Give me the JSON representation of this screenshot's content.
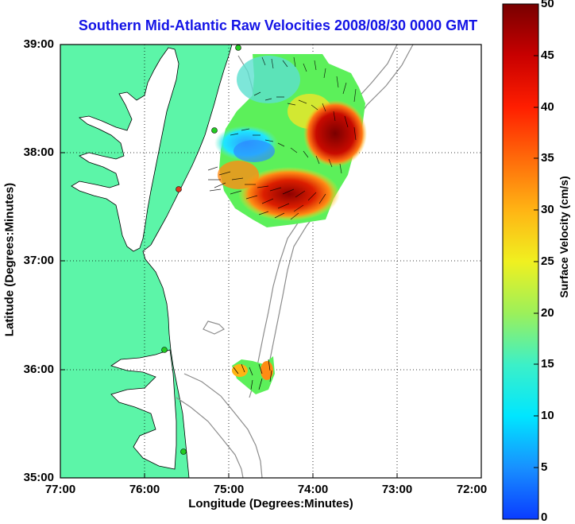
{
  "title": "Southern Mid-Atlantic Raw Velocities 2008/08/30 0000 GMT",
  "x_axis": {
    "label": "Longitude (Degrees:Minutes)",
    "ticks": [
      "77:00",
      "76:00",
      "75:00",
      "74:00",
      "73:00",
      "72:00"
    ]
  },
  "y_axis": {
    "label": "Latitude (Degrees:Minutes)",
    "ticks": [
      "39:00",
      "38:00",
      "37:00",
      "36:00",
      "35:00"
    ]
  },
  "colorbar": {
    "label": "Surface Velocity (cm/s)",
    "ticks": [
      "50",
      "45",
      "40",
      "35",
      "30",
      "25",
      "20",
      "15",
      "10",
      "5",
      "0"
    ],
    "min": 0,
    "max": 50
  },
  "map": {
    "lon_range": [
      -77,
      -72
    ],
    "lat_range": [
      35,
      39
    ],
    "land_color": "#5cf5a8",
    "coast_line_color": "#000000",
    "bathymetry_color": "#8c8c8c",
    "grid": "dotted",
    "station_color_active": "#22cc22",
    "station_color_inactive": "#e03a1e"
  }
}
